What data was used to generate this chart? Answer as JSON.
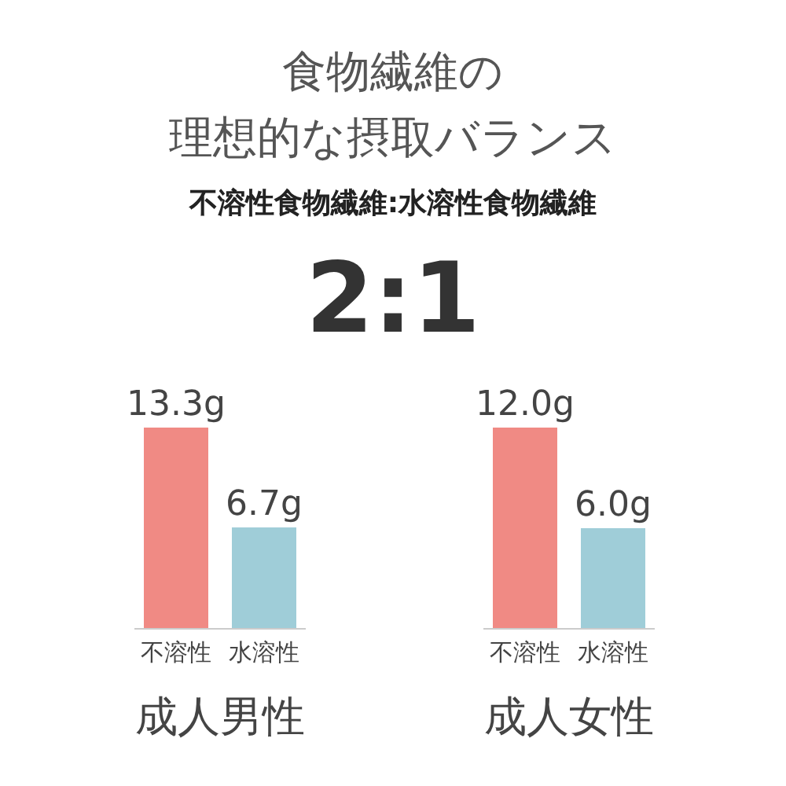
{
  "chart_data": [
    {
      "type": "other",
      "title": "食物繊維の",
      "subtitle": "理想的な摂取バランス",
      "annotations": [
        "不溶性食物繊維:水溶性食物繊維",
        "2:1"
      ]
    },
    {
      "type": "bar",
      "categories": [
        "不溶性",
        "水溶性"
      ],
      "values": [
        13.3,
        6.7
      ],
      "colors": [
        "#f08a84",
        "#9fcdd8"
      ],
      "value_labels": [
        "13.3g",
        "6.7g"
      ],
      "xlabel": "成人男性"
    },
    {
      "type": "bar",
      "categories": [
        "不溶性",
        "水溶性"
      ],
      "values": [
        12.0,
        6.0
      ],
      "colors": [
        "#f08a84",
        "#9fcdd8"
      ],
      "value_labels": [
        "12.0g",
        "6.0g"
      ],
      "xlabel": "成人女性"
    }
  ]
}
